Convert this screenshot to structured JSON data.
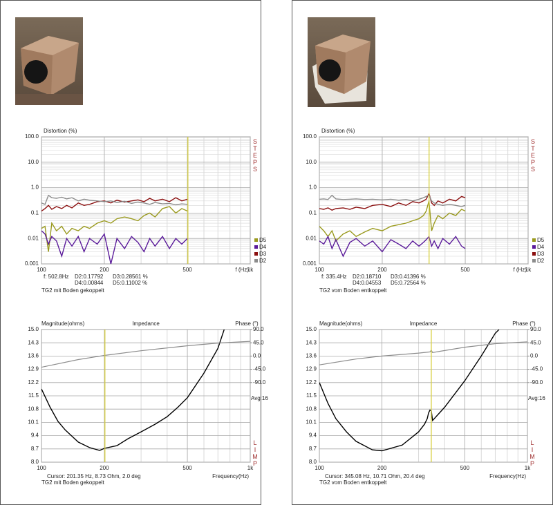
{
  "chart_data": [
    {
      "type": "line",
      "title": "Distortion (%)",
      "side_label": "STEPS",
      "x_label": "f (Hz)",
      "xlog": true,
      "ylog": true,
      "xlim": [
        100,
        1000
      ],
      "ylim": [
        0.001,
        100
      ],
      "xticks": [
        100,
        200,
        500,
        {
          "value": 1000,
          "label": "1k"
        }
      ],
      "yticks": [
        {
          "value": 100,
          "label": "100.0"
        },
        {
          "value": 10,
          "label": "10.0"
        },
        {
          "value": 1,
          "label": "1.0"
        },
        0.1,
        0.01,
        0.001
      ],
      "grid": true,
      "legend": "lower right",
      "cursor": 502.8,
      "cursor_color": "#d8d040",
      "readout": [
        "f: 502.8Hz",
        "D2:0.17792",
        "D3:0.28561 %",
        "D4:0.00844",
        "D5:0.11002  %"
      ],
      "caption": "TG2 mit Boden gekoppelt",
      "series": [
        {
          "name": "D5",
          "color": "#9a9a1e",
          "x": [
            100,
            104,
            108,
            112,
            118,
            125,
            132,
            140,
            150,
            160,
            170,
            185,
            200,
            215,
            230,
            250,
            270,
            290,
            310,
            330,
            350,
            380,
            410,
            440,
            470,
            500
          ],
          "values": [
            0.025,
            0.03,
            0.003,
            0.04,
            0.02,
            0.03,
            0.015,
            0.025,
            0.02,
            0.03,
            0.025,
            0.04,
            0.05,
            0.04,
            0.06,
            0.07,
            0.06,
            0.05,
            0.08,
            0.1,
            0.07,
            0.15,
            0.18,
            0.1,
            0.15,
            0.12
          ]
        },
        {
          "name": "D4",
          "color": "#5a1a9a",
          "x": [
            100,
            104,
            108,
            112,
            118,
            125,
            132,
            140,
            150,
            160,
            170,
            185,
            200,
            215,
            230,
            250,
            270,
            290,
            310,
            330,
            350,
            380,
            410,
            440,
            470,
            500
          ],
          "values": [
            0.02,
            0.015,
            0.006,
            0.012,
            0.008,
            0.002,
            0.01,
            0.005,
            0.012,
            0.003,
            0.01,
            0.006,
            0.015,
            0.001,
            0.01,
            0.004,
            0.012,
            0.007,
            0.003,
            0.01,
            0.005,
            0.012,
            0.004,
            0.01,
            0.006,
            0.01
          ]
        },
        {
          "name": "D3",
          "color": "#8b1010",
          "x": [
            100,
            104,
            108,
            112,
            118,
            125,
            132,
            140,
            150,
            160,
            170,
            185,
            200,
            215,
            230,
            250,
            270,
            290,
            310,
            330,
            350,
            380,
            410,
            440,
            470,
            500
          ],
          "values": [
            0.12,
            0.15,
            0.2,
            0.14,
            0.18,
            0.15,
            0.2,
            0.16,
            0.25,
            0.2,
            0.22,
            0.28,
            0.3,
            0.25,
            0.32,
            0.27,
            0.3,
            0.33,
            0.28,
            0.38,
            0.3,
            0.35,
            0.28,
            0.4,
            0.3,
            0.35
          ]
        },
        {
          "name": "D2",
          "color": "#8c8c8c",
          "x": [
            100,
            104,
            108,
            112,
            118,
            125,
            132,
            140,
            150,
            160,
            170,
            185,
            200,
            215,
            230,
            250,
            270,
            290,
            310,
            330,
            350,
            380,
            410,
            440,
            470,
            500
          ],
          "values": [
            0.25,
            0.22,
            0.5,
            0.4,
            0.38,
            0.42,
            0.36,
            0.4,
            0.3,
            0.35,
            0.32,
            0.3,
            0.28,
            0.3,
            0.26,
            0.29,
            0.24,
            0.27,
            0.25,
            0.22,
            0.26,
            0.23,
            0.24,
            0.21,
            0.23,
            0.22
          ]
        }
      ]
    },
    {
      "type": "line",
      "title": "Impedance",
      "y_label": "Magnitude(ohms)",
      "y2_label": "Phase (°)",
      "annotation": "Avg:16",
      "side_label": "LIMP",
      "x_label": "Frequency(Hz)",
      "xlog": true,
      "xlim": [
        100,
        1000
      ],
      "ylim": [
        8,
        15
      ],
      "y2lim": [
        -360,
        90
      ],
      "xticks": [
        100,
        200,
        500,
        {
          "value": 1000,
          "label": "1k"
        }
      ],
      "yticks": [
        {
          "value": 8,
          "label": "8.0"
        },
        8.7,
        9.4,
        10.1,
        10.8,
        11.5,
        12.2,
        12.9,
        13.6,
        14.3,
        {
          "value": 15,
          "label": "15.0"
        }
      ],
      "y2ticks": [
        {
          "value": 90,
          "label": "90.0"
        },
        {
          "value": 45,
          "label": "45.0"
        },
        {
          "value": 0,
          "label": "0.0"
        },
        {
          "value": -45,
          "label": "-45.0"
        },
        {
          "value": -90,
          "label": "-90.0"
        }
      ],
      "grid": true,
      "cursor": 201.35,
      "cursor_color": "#d8d040",
      "readout": [
        "Cursor: 201.35 Hz, 8.73 Ohm, 2.0 deg"
      ],
      "caption": "TG2 mit Boden gekoppelt",
      "series": [
        {
          "color": "#000000",
          "x": [
            100,
            110,
            120,
            130,
            150,
            170,
            190,
            200,
            230,
            260,
            300,
            350,
            400,
            450,
            500,
            600,
            700,
            750
          ],
          "values": [
            11.86,
            10.9,
            10.15,
            9.7,
            9.06,
            8.77,
            8.62,
            8.73,
            8.87,
            9.24,
            9.6,
            10.0,
            10.4,
            10.9,
            11.4,
            12.7,
            14.0,
            15.0
          ]
        },
        {
          "color": "#8c8c8c",
          "axis": "y2",
          "x": [
            100,
            150,
            200,
            300,
            500,
            700,
            1000
          ],
          "values": [
            -38,
            -12,
            2,
            18,
            35,
            44,
            50
          ]
        }
      ]
    },
    {
      "type": "line",
      "title": "Distortion (%)",
      "side_label": "STEPS",
      "x_label": "f (Hz)",
      "xlog": true,
      "ylog": true,
      "xlim": [
        100,
        1000
      ],
      "ylim": [
        0.001,
        100
      ],
      "xticks": [
        100,
        200,
        500,
        {
          "value": 1000,
          "label": "1k"
        }
      ],
      "yticks": [
        {
          "value": 100,
          "label": "100.0"
        },
        {
          "value": 10,
          "label": "10.0"
        },
        {
          "value": 1,
          "label": "1.0"
        },
        0.1,
        0.01,
        0.001
      ],
      "grid": true,
      "legend": "lower right",
      "cursor": 335.4,
      "cursor_color": "#d8d040",
      "readout": [
        "f: 335.4Hz",
        "D2:0.18710",
        "D3:0.41396 %",
        "D4:0.04553",
        "D5:0.72564  %"
      ],
      "caption": "TG2 vom Boden entkoppelt",
      "series": [
        {
          "name": "D5",
          "color": "#9a9a1e",
          "x": [
            100,
            105,
            110,
            115,
            120,
            130,
            140,
            150,
            165,
            180,
            200,
            220,
            240,
            260,
            280,
            300,
            315,
            325,
            335,
            345,
            355,
            370,
            390,
            420,
            450,
            480,
            500
          ],
          "values": [
            0.03,
            0.02,
            0.012,
            0.02,
            0.008,
            0.015,
            0.02,
            0.012,
            0.018,
            0.025,
            0.02,
            0.03,
            0.035,
            0.04,
            0.05,
            0.06,
            0.08,
            0.12,
            0.3,
            0.02,
            0.04,
            0.08,
            0.06,
            0.1,
            0.08,
            0.14,
            0.12
          ]
        },
        {
          "name": "D4",
          "color": "#5a1a9a",
          "x": [
            100,
            105,
            110,
            115,
            120,
            130,
            140,
            150,
            165,
            180,
            200,
            220,
            240,
            260,
            280,
            300,
            315,
            325,
            335,
            345,
            355,
            370,
            390,
            420,
            450,
            480,
            500
          ],
          "values": [
            0.008,
            0.006,
            0.012,
            0.004,
            0.009,
            0.002,
            0.007,
            0.01,
            0.005,
            0.008,
            0.003,
            0.009,
            0.006,
            0.004,
            0.008,
            0.005,
            0.007,
            0.009,
            0.012,
            0.005,
            0.008,
            0.004,
            0.01,
            0.006,
            0.012,
            0.005,
            0.004
          ]
        },
        {
          "name": "D3",
          "color": "#8b1010",
          "x": [
            100,
            105,
            110,
            115,
            120,
            130,
            140,
            150,
            165,
            180,
            200,
            220,
            240,
            260,
            280,
            300,
            315,
            325,
            335,
            345,
            355,
            370,
            390,
            420,
            450,
            480,
            500
          ],
          "values": [
            0.15,
            0.14,
            0.16,
            0.13,
            0.15,
            0.16,
            0.14,
            0.17,
            0.15,
            0.2,
            0.22,
            0.18,
            0.25,
            0.2,
            0.28,
            0.25,
            0.3,
            0.35,
            0.6,
            0.25,
            0.2,
            0.3,
            0.25,
            0.35,
            0.3,
            0.45,
            0.4
          ]
        },
        {
          "name": "D2",
          "color": "#8c8c8c",
          "x": [
            100,
            105,
            110,
            115,
            120,
            130,
            140,
            150,
            165,
            180,
            200,
            220,
            240,
            260,
            280,
            300,
            315,
            325,
            335,
            345,
            355,
            370,
            390,
            420,
            450,
            480,
            500
          ],
          "values": [
            0.35,
            0.36,
            0.34,
            0.5,
            0.36,
            0.34,
            0.35,
            0.36,
            0.34,
            0.35,
            0.33,
            0.35,
            0.32,
            0.34,
            0.3,
            0.35,
            0.4,
            0.45,
            0.5,
            0.3,
            0.25,
            0.22,
            0.2,
            0.22,
            0.2,
            0.18,
            0.2
          ]
        }
      ]
    },
    {
      "type": "line",
      "title": "Impedance",
      "y_label": "Magnitude(ohms)",
      "y2_label": "Phase (°)",
      "annotation": "Avg:16",
      "side_label": "LIMP",
      "x_label": "Frequency(Hz)",
      "xlog": true,
      "xlim": [
        100,
        1000
      ],
      "ylim": [
        8,
        15
      ],
      "y2lim": [
        -360,
        90
      ],
      "xticks": [
        100,
        200,
        500,
        {
          "value": 1000,
          "label": "1k"
        }
      ],
      "yticks": [
        {
          "value": 8,
          "label": "8.0"
        },
        8.7,
        9.4,
        10.1,
        10.8,
        11.5,
        12.2,
        12.9,
        13.6,
        14.3,
        {
          "value": 15,
          "label": "15.0"
        }
      ],
      "y2ticks": [
        {
          "value": 90,
          "label": "90.0"
        },
        {
          "value": 45,
          "label": "45.0"
        },
        {
          "value": 0,
          "label": "0.0"
        },
        {
          "value": -45,
          "label": "-45.0"
        },
        {
          "value": -90,
          "label": "-90.0"
        }
      ],
      "grid": true,
      "cursor": 345.08,
      "cursor_color": "#d8d040",
      "readout": [
        "Cursor: 345.08 Hz, 10.71 Ohm, 20.4 deg"
      ],
      "caption": "TG2 vom Boden entkoppelt",
      "series": [
        {
          "color": "#000000",
          "x": [
            100,
            110,
            120,
            135,
            150,
            180,
            200,
            250,
            300,
            320,
            330,
            335,
            340,
            345,
            350,
            400,
            500,
            600,
            700,
            730
          ],
          "values": [
            12.2,
            11.1,
            10.3,
            9.6,
            9.1,
            8.65,
            8.6,
            8.9,
            9.6,
            10.0,
            10.3,
            10.6,
            10.75,
            10.71,
            10.2,
            10.9,
            12.3,
            13.6,
            14.8,
            15.0
          ]
        },
        {
          "color": "#8c8c8c",
          "axis": "y2",
          "x": [
            100,
            150,
            200,
            300,
            340,
            345,
            350,
            500,
            700,
            1000
          ],
          "values": [
            -30,
            -10,
            0,
            10,
            14,
            20,
            12,
            30,
            42,
            48
          ]
        }
      ]
    }
  ]
}
